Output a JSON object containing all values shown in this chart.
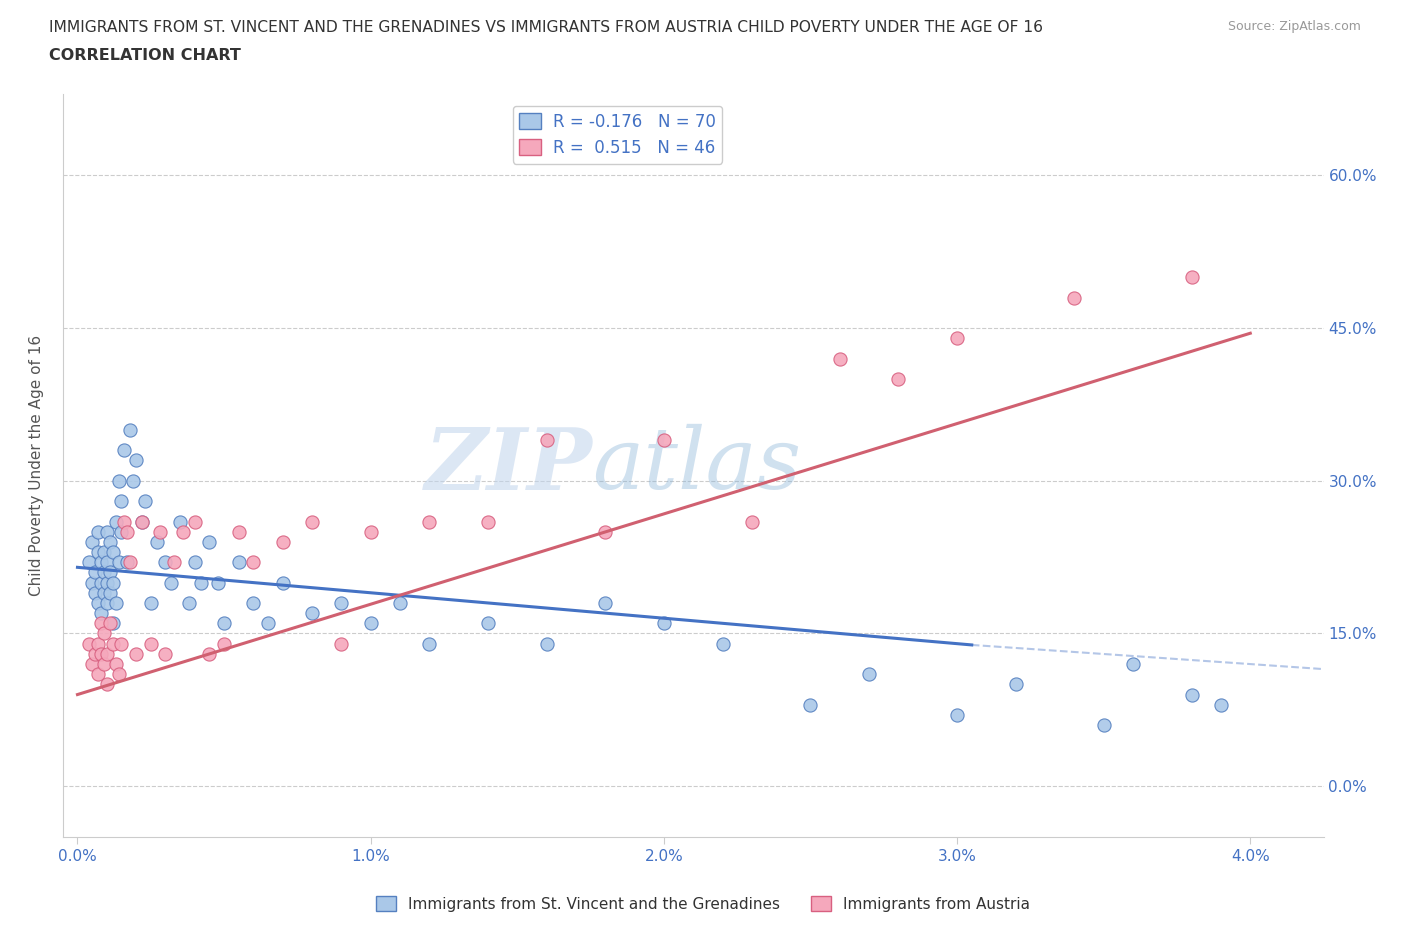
{
  "title_line1": "IMMIGRANTS FROM ST. VINCENT AND THE GRENADINES VS IMMIGRANTS FROM AUSTRIA CHILD POVERTY UNDER THE AGE OF 16",
  "title_line2": "CORRELATION CHART",
  "source": "Source: ZipAtlas.com",
  "ylabel": "Child Poverty Under the Age of 16",
  "blue_R": -0.176,
  "blue_N": 70,
  "pink_R": 0.515,
  "pink_N": 46,
  "blue_color": "#aac8e8",
  "pink_color": "#f5a8bc",
  "blue_edge_color": "#5580c0",
  "pink_edge_color": "#d86080",
  "blue_line_color": "#4472c4",
  "pink_line_color": "#d06070",
  "legend_label_blue": "Immigrants from St. Vincent and the Grenadines",
  "legend_label_pink": "Immigrants from Austria",
  "x_tick_vals": [
    0.0,
    1.0,
    2.0,
    3.0,
    4.0
  ],
  "y_tick_vals": [
    0.0,
    15.0,
    30.0,
    45.0,
    60.0
  ],
  "xlim": [
    -0.05,
    4.25
  ],
  "ylim": [
    -5.0,
    68.0
  ],
  "blue_line_x0": 0.0,
  "blue_line_y0": 21.5,
  "blue_line_x1": 4.0,
  "blue_line_y1": 11.5,
  "pink_line_x0": 0.0,
  "pink_line_y0": 9.0,
  "pink_line_x1": 4.0,
  "pink_line_y1": 44.5,
  "blue_x": [
    0.04,
    0.05,
    0.05,
    0.06,
    0.06,
    0.07,
    0.07,
    0.07,
    0.08,
    0.08,
    0.08,
    0.09,
    0.09,
    0.09,
    0.1,
    0.1,
    0.1,
    0.1,
    0.11,
    0.11,
    0.11,
    0.12,
    0.12,
    0.12,
    0.13,
    0.13,
    0.14,
    0.14,
    0.15,
    0.15,
    0.16,
    0.17,
    0.18,
    0.19,
    0.2,
    0.22,
    0.23,
    0.25,
    0.27,
    0.3,
    0.32,
    0.35,
    0.38,
    0.4,
    0.42,
    0.45,
    0.48,
    0.5,
    0.55,
    0.6,
    0.65,
    0.7,
    0.8,
    0.9,
    1.0,
    1.1,
    1.2,
    1.4,
    1.6,
    1.8,
    2.0,
    2.2,
    2.5,
    2.7,
    3.0,
    3.2,
    3.5,
    3.6,
    3.8,
    3.9
  ],
  "blue_y": [
    22.0,
    20.0,
    24.0,
    21.0,
    19.0,
    25.0,
    18.0,
    23.0,
    20.0,
    22.0,
    17.0,
    21.0,
    19.0,
    23.0,
    18.0,
    20.0,
    25.0,
    22.0,
    19.0,
    21.0,
    24.0,
    16.0,
    20.0,
    23.0,
    26.0,
    18.0,
    30.0,
    22.0,
    28.0,
    25.0,
    33.0,
    22.0,
    35.0,
    30.0,
    32.0,
    26.0,
    28.0,
    18.0,
    24.0,
    22.0,
    20.0,
    26.0,
    18.0,
    22.0,
    20.0,
    24.0,
    20.0,
    16.0,
    22.0,
    18.0,
    16.0,
    20.0,
    17.0,
    18.0,
    16.0,
    18.0,
    14.0,
    16.0,
    14.0,
    18.0,
    16.0,
    14.0,
    8.0,
    11.0,
    7.0,
    10.0,
    6.0,
    12.0,
    9.0,
    8.0
  ],
  "pink_x": [
    0.04,
    0.05,
    0.06,
    0.07,
    0.07,
    0.08,
    0.08,
    0.09,
    0.09,
    0.1,
    0.1,
    0.11,
    0.12,
    0.13,
    0.14,
    0.15,
    0.16,
    0.17,
    0.18,
    0.2,
    0.22,
    0.25,
    0.28,
    0.3,
    0.33,
    0.36,
    0.4,
    0.45,
    0.5,
    0.55,
    0.6,
    0.7,
    0.8,
    0.9,
    1.0,
    1.2,
    1.4,
    1.6,
    1.8,
    2.0,
    2.3,
    2.6,
    2.8,
    3.0,
    3.4,
    3.8
  ],
  "pink_y": [
    14.0,
    12.0,
    13.0,
    11.0,
    14.0,
    13.0,
    16.0,
    12.0,
    15.0,
    10.0,
    13.0,
    16.0,
    14.0,
    12.0,
    11.0,
    14.0,
    26.0,
    25.0,
    22.0,
    13.0,
    26.0,
    14.0,
    25.0,
    13.0,
    22.0,
    25.0,
    26.0,
    13.0,
    14.0,
    25.0,
    22.0,
    24.0,
    26.0,
    14.0,
    25.0,
    26.0,
    26.0,
    34.0,
    25.0,
    34.0,
    26.0,
    42.0,
    40.0,
    44.0,
    48.0,
    50.0
  ]
}
